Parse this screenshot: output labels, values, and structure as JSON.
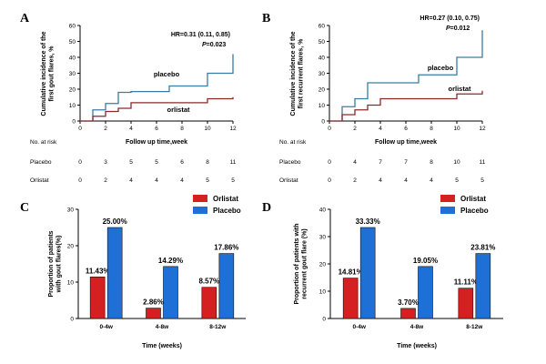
{
  "chart_data": [
    {
      "panel": "A",
      "type": "line",
      "step": true,
      "ylabel": "Cumulative incidence of the first gout flares, %",
      "ylabel_lines": [
        "Cumulative incidence of the",
        "first gout flares, %"
      ],
      "xlabel": "Follow up time,week",
      "xticks": [
        0,
        2,
        4,
        6,
        8,
        10,
        12
      ],
      "yticks": [
        0,
        10,
        20,
        30,
        40,
        50,
        60
      ],
      "xlim": [
        0,
        12
      ],
      "ylim": [
        0,
        60
      ],
      "hr_text": "HR=0.31 (0.11, 0.85)",
      "p_label": "P",
      "p_value": "=0.023",
      "series": [
        {
          "name": "placebo",
          "color": "#3a7ca5",
          "x": [
            0,
            1,
            2,
            3,
            4,
            7,
            10,
            12
          ],
          "y": [
            0,
            7,
            11,
            18,
            18.5,
            22,
            30,
            42
          ]
        },
        {
          "name": "orlistat",
          "color": "#8b2a2a",
          "x": [
            0,
            1,
            2,
            3,
            4,
            10,
            12
          ],
          "y": [
            0,
            3,
            6,
            8,
            11.5,
            14,
            15
          ]
        }
      ],
      "at_risk": {
        "header": "No. at risk",
        "times": [
          0,
          2,
          4,
          6,
          8,
          10,
          12
        ],
        "rows": [
          {
            "label": "Placebo",
            "values": [
              "0",
              "3",
              "5",
              "5",
              "6",
              "8",
              "11"
            ]
          },
          {
            "label": "Orlistat",
            "values": [
              "0",
              "2",
              "4",
              "4",
              "4",
              "5",
              "5"
            ]
          }
        ]
      }
    },
    {
      "panel": "B",
      "type": "line",
      "step": true,
      "ylabel": "Cumulative incidence of the first recurrent flares, %",
      "ylabel_lines": [
        "Cumulative incidence of the",
        "first recurrent flares, %"
      ],
      "xlabel": "Follow up time,week",
      "xticks": [
        0,
        2,
        4,
        6,
        8,
        10,
        12
      ],
      "yticks": [
        0,
        10,
        20,
        30,
        40,
        50,
        60
      ],
      "xlim": [
        0,
        12
      ],
      "ylim": [
        0,
        60
      ],
      "hr_text": "HR=0.27 (0.10, 0.75)",
      "p_label": "P",
      "p_value": "=0.012",
      "series": [
        {
          "name": "placebo",
          "color": "#3a7ca5",
          "x": [
            0,
            1,
            2,
            3,
            7,
            10,
            12
          ],
          "y": [
            0,
            9,
            14,
            24,
            29,
            40,
            57
          ]
        },
        {
          "name": "orlistat",
          "color": "#8b2a2a",
          "x": [
            0,
            1,
            2,
            3,
            4,
            10,
            12
          ],
          "y": [
            0,
            4,
            7,
            10,
            14,
            17,
            19
          ]
        }
      ],
      "at_risk": {
        "header": "No. at risk",
        "times": [
          0,
          2,
          4,
          6,
          8,
          10,
          12
        ],
        "rows": [
          {
            "label": "Placebo",
            "values": [
              "0",
              "4",
              "7",
              "7",
              "8",
              "10",
              "11"
            ]
          },
          {
            "label": "Orlistat",
            "values": [
              "0",
              "2",
              "4",
              "4",
              "4",
              "5",
              "5"
            ]
          }
        ]
      }
    },
    {
      "panel": "C",
      "type": "bar",
      "ylabel": "Proportion of patients with gout flares(%)",
      "ylabel_lines": [
        "Proportion of patients",
        "with gout flares(%)"
      ],
      "xlabel": "Time (weeks)",
      "categories": [
        "0-4w",
        "4-8w",
        "8-12w"
      ],
      "yticks": [
        0,
        10,
        20,
        30
      ],
      "ylim": [
        0,
        30
      ],
      "series": [
        {
          "name": "Orlistat",
          "color": "#d42020",
          "values": [
            11.43,
            2.86,
            8.57
          ],
          "labels": [
            "11.43%",
            "2.86%",
            "8.57%"
          ]
        },
        {
          "name": "Placebo",
          "color": "#1e6fd6",
          "values": [
            25.0,
            14.29,
            17.86
          ],
          "labels": [
            "25.00%",
            "14.29%",
            "17.86%"
          ]
        }
      ],
      "legend_position": "top-right"
    },
    {
      "panel": "D",
      "type": "bar",
      "ylabel": "Proportion of patients with recurrent gout flare (%)",
      "ylabel_lines": [
        "Proportion of patients with",
        "recurrent gout flare (%)"
      ],
      "xlabel": "Time (weeks)",
      "categories": [
        "0-4w",
        "4-8w",
        "8-12w"
      ],
      "yticks": [
        0,
        10,
        20,
        30,
        40
      ],
      "ylim": [
        0,
        40
      ],
      "series": [
        {
          "name": "Orlistat",
          "color": "#d42020",
          "values": [
            14.81,
            3.7,
            11.11
          ],
          "labels": [
            "14.81%",
            "3.70%",
            "11.11%"
          ]
        },
        {
          "name": "Placebo",
          "color": "#1e6fd6",
          "values": [
            33.33,
            19.05,
            23.81
          ],
          "labels": [
            "33.33%",
            "19.05%",
            "23.81%"
          ]
        }
      ],
      "legend_position": "top-right"
    }
  ]
}
